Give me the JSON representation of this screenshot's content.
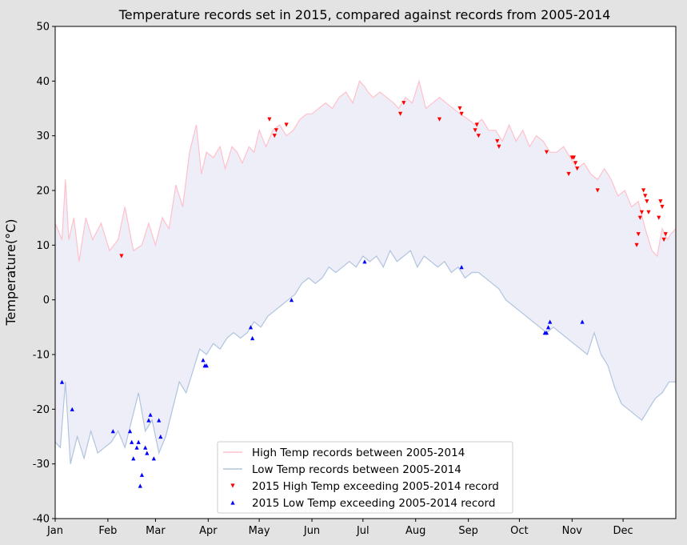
{
  "chart_data": {
    "type": "line",
    "title": "Temperature records set in 2015, compared against records from 2005-2014",
    "xlabel": "",
    "ylabel": "Temperature(°C)",
    "ylim": [
      -40,
      50
    ],
    "yticks": [
      -40,
      -30,
      -20,
      -10,
      0,
      10,
      20,
      30,
      40,
      50
    ],
    "xlim_day": [
      1,
      366
    ],
    "month_ticks": [
      {
        "label": "Jan",
        "day": 1
      },
      {
        "label": "Feb",
        "day": 32
      },
      {
        "label": "Mar",
        "day": 60
      },
      {
        "label": "Apr",
        "day": 91
      },
      {
        "label": "May",
        "day": 121
      },
      {
        "label": "Jun",
        "day": 152
      },
      {
        "label": "Jul",
        "day": 182
      },
      {
        "label": "Aug",
        "day": 213
      },
      {
        "label": "Sep",
        "day": 244
      },
      {
        "label": "Oct",
        "day": 274
      },
      {
        "label": "Nov",
        "day": 305
      },
      {
        "label": "Dec",
        "day": 335
      }
    ],
    "grid": false,
    "legend_position": "lower-center",
    "colors": {
      "high_line": "#ffc0cb",
      "low_line": "#b0c4de",
      "fill": "#eeeef9",
      "high_marker": "#ff0000",
      "low_marker": "#0000ff"
    },
    "series": [
      {
        "name": "High Temp records between 2005-2014",
        "style": "line",
        "x": [
          1,
          5,
          7,
          9,
          12,
          15,
          19,
          23,
          28,
          33,
          38,
          42,
          47,
          52,
          56,
          60,
          64,
          68,
          72,
          76,
          80,
          84,
          87,
          90,
          94,
          98,
          101,
          105,
          108,
          111,
          115,
          118,
          121,
          125,
          129,
          133,
          137,
          141,
          145,
          149,
          152,
          156,
          160,
          164,
          168,
          172,
          176,
          180,
          183,
          185,
          188,
          192,
          196,
          200,
          203,
          207,
          211,
          215,
          219,
          223,
          227,
          231,
          235,
          239,
          244,
          248,
          252,
          256,
          260,
          264,
          268,
          272,
          276,
          280,
          284,
          288,
          292,
          296,
          300,
          304,
          308,
          312,
          316,
          320,
          324,
          328,
          332,
          336,
          340,
          344,
          348,
          352,
          355,
          358,
          361,
          363,
          366
        ],
        "y": [
          14,
          11,
          22,
          11,
          15,
          7,
          15,
          11,
          14,
          9,
          11,
          17,
          9,
          10,
          14,
          10,
          15,
          13,
          21,
          17,
          27,
          32,
          23,
          27,
          26,
          28,
          24,
          28,
          27,
          25,
          28,
          27,
          31,
          28,
          31,
          32,
          30,
          31,
          33,
          34,
          34,
          35,
          36,
          35,
          37,
          38,
          36,
          40,
          39,
          38,
          37,
          38,
          37,
          36,
          35,
          37,
          36,
          40,
          35,
          36,
          37,
          36,
          35,
          34,
          33,
          32,
          33,
          31,
          31,
          29,
          32,
          29,
          31,
          28,
          30,
          29,
          27,
          27,
          28,
          26,
          24,
          25,
          23,
          22,
          24,
          22,
          19,
          20,
          17,
          18,
          13,
          9,
          8,
          13,
          11,
          12,
          13
        ]
      },
      {
        "name": "Low Temp records between 2005-2014",
        "style": "line",
        "x": [
          1,
          4,
          7,
          10,
          14,
          18,
          22,
          26,
          30,
          34,
          38,
          42,
          46,
          50,
          54,
          58,
          62,
          66,
          70,
          74,
          78,
          82,
          86,
          90,
          94,
          98,
          102,
          106,
          110,
          114,
          118,
          122,
          126,
          130,
          134,
          138,
          142,
          146,
          150,
          154,
          158,
          162,
          166,
          170,
          174,
          178,
          182,
          186,
          190,
          194,
          198,
          202,
          206,
          210,
          214,
          218,
          222,
          226,
          230,
          234,
          238,
          242,
          246,
          250,
          254,
          258,
          262,
          266,
          270,
          274,
          278,
          282,
          286,
          290,
          294,
          298,
          302,
          306,
          310,
          314,
          318,
          322,
          326,
          330,
          334,
          338,
          342,
          346,
          350,
          354,
          358,
          362,
          366
        ],
        "y": [
          -26,
          -27,
          -15,
          -30,
          -25,
          -29,
          -24,
          -28,
          -27,
          -26,
          -24,
          -27,
          -22,
          -17,
          -24,
          -22,
          -28,
          -25,
          -20,
          -15,
          -17,
          -13,
          -9,
          -10,
          -8,
          -9,
          -7,
          -6,
          -7,
          -6,
          -4,
          -5,
          -3,
          -2,
          -1,
          0,
          1,
          3,
          4,
          3,
          4,
          6,
          5,
          6,
          7,
          6,
          8,
          7,
          8,
          6,
          9,
          7,
          8,
          9,
          6,
          8,
          7,
          6,
          7,
          5,
          6,
          4,
          5,
          5,
          4,
          3,
          2,
          0,
          -1,
          -2,
          -3,
          -4,
          -5,
          -6,
          -5,
          -6,
          -7,
          -8,
          -9,
          -10,
          -6,
          -10,
          -12,
          -16,
          -19,
          -20,
          -21,
          -22,
          -20,
          -18,
          -17,
          -15,
          -15
        ]
      },
      {
        "name": "2015 High Temp exceeding 2005-2014 record",
        "style": "marker-down",
        "x": [
          40,
          127,
          130,
          131,
          137,
          204,
          206,
          227,
          239,
          240,
          248,
          249,
          250,
          261,
          262,
          290,
          303,
          305,
          306,
          307,
          308,
          320,
          343,
          344,
          345,
          346,
          347,
          348,
          349,
          350,
          356,
          357,
          358,
          359,
          360
        ],
        "y": [
          8,
          33,
          30,
          31,
          32,
          34,
          36,
          33,
          35,
          34,
          31,
          32,
          30,
          29,
          28,
          27,
          23,
          26,
          26,
          25,
          24,
          20,
          10,
          12,
          15,
          16,
          20,
          19,
          18,
          16,
          15,
          18,
          17,
          11,
          12
        ]
      },
      {
        "name": "2015 Low Temp exceeding 2005-2014 record",
        "style": "marker-up",
        "x": [
          5,
          11,
          35,
          45,
          46,
          47,
          49,
          50,
          51,
          52,
          54,
          55,
          56,
          57,
          59,
          62,
          63,
          88,
          89,
          90,
          116,
          117,
          140,
          183,
          240,
          289,
          290,
          291,
          292,
          311
        ],
        "y": [
          -15,
          -20,
          -24,
          -24,
          -26,
          -29,
          -27,
          -26,
          -34,
          -32,
          -27,
          -28,
          -22,
          -21,
          -29,
          -22,
          -25,
          -11,
          -12,
          -12,
          -5,
          -7,
          0,
          7,
          6,
          -6,
          -6,
          -5,
          -4,
          -4
        ]
      }
    ]
  }
}
